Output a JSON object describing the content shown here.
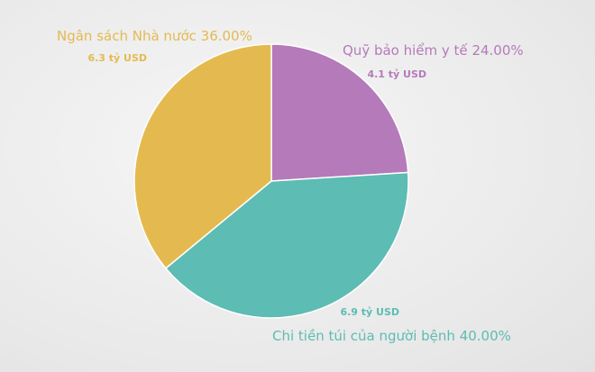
{
  "chart_data": {
    "type": "pie",
    "categories": [
      "Quỹ bảo hiểm y tế",
      "Chi tiền túi của người bệnh",
      "Ngân sách Nhà nước"
    ],
    "values": [
      24,
      40,
      36
    ],
    "value_labels": [
      "24.00%",
      "40.00%",
      "36.00%"
    ],
    "amount_labels": [
      "4.1 tỷ USD",
      "6.9 tỷ USD",
      "6.3 tỷ USD"
    ],
    "colors": [
      "#b57aba",
      "#5dbcb3",
      "#e4ba50"
    ]
  }
}
